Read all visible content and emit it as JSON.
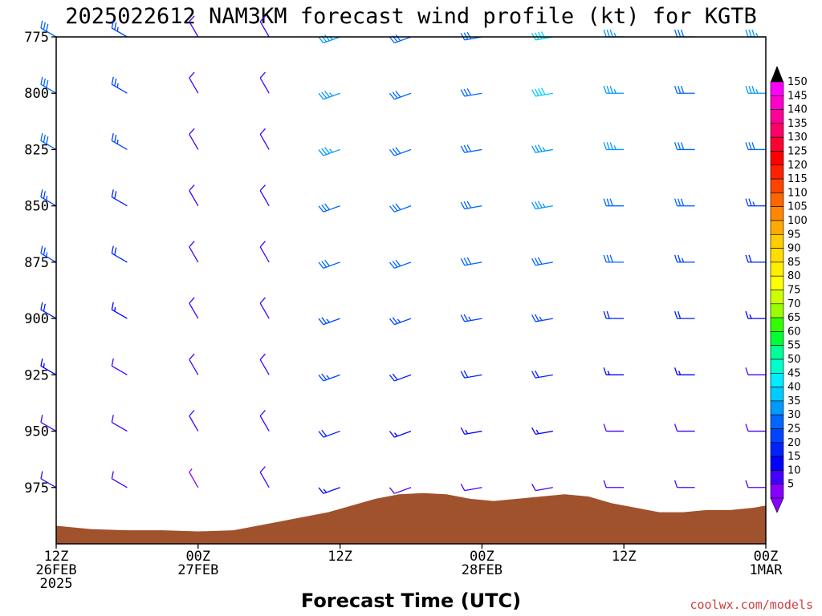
{
  "chart_data": {
    "type": "wind_profile",
    "title": "2025022612 NAM3KM forecast wind profile (kt) for KGTB",
    "xlabel": "Forecast Time (UTC)",
    "credit": "coolwx.com/models",
    "y_axis": {
      "quantity": "pressure (hPa)",
      "range": [
        775,
        1000
      ],
      "inverted": true,
      "ticks": [
        "775",
        "800",
        "825",
        "850",
        "875",
        "900",
        "925",
        "950",
        "975"
      ]
    },
    "x_axis": {
      "range_hours": [
        0,
        60
      ],
      "ticks": [
        {
          "hour": 0,
          "lines": [
            "12Z",
            "26FEB",
            "2025"
          ]
        },
        {
          "hour": 12,
          "lines": [
            "00Z",
            "27FEB"
          ]
        },
        {
          "hour": 24,
          "lines": [
            "12Z"
          ]
        },
        {
          "hour": 36,
          "lines": [
            "00Z",
            "28FEB"
          ]
        },
        {
          "hour": 48,
          "lines": [
            "12Z"
          ]
        },
        {
          "hour": 60,
          "lines": [
            "00Z",
            "1MAR"
          ]
        }
      ]
    },
    "colorbar": {
      "units": "kt",
      "labels": [
        "150",
        "145",
        "140",
        "135",
        "130",
        "125",
        "120",
        "115",
        "110",
        "105",
        "100",
        "95",
        "90",
        "85",
        "80",
        "75",
        "70",
        "65",
        "60",
        "55",
        "50",
        "45",
        "40",
        "35",
        "30",
        "25",
        "20",
        "15",
        "10",
        "5"
      ],
      "colors": [
        "#ff00ff",
        "#ff00cc",
        "#ff0099",
        "#ff0066",
        "#ff0033",
        "#ff0000",
        "#ff2200",
        "#ff4400",
        "#ff6600",
        "#ff8800",
        "#ffaa00",
        "#ffcc00",
        "#ffdd00",
        "#ffee00",
        "#ffff00",
        "#ccff00",
        "#99ff00",
        "#33ff00",
        "#00ff33",
        "#00ff99",
        "#00ffcc",
        "#00eeff",
        "#00ccff",
        "#0099ff",
        "#0066ff",
        "#0044ff",
        "#0022ff",
        "#0000ff",
        "#4400ff",
        "#8800ff"
      ]
    },
    "terrain_surface_pressure": [
      {
        "hour": 0,
        "p": 992
      },
      {
        "hour": 3,
        "p": 993.5
      },
      {
        "hour": 6,
        "p": 994
      },
      {
        "hour": 9,
        "p": 994
      },
      {
        "hour": 12,
        "p": 994.5
      },
      {
        "hour": 15,
        "p": 994
      },
      {
        "hour": 18,
        "p": 991
      },
      {
        "hour": 21,
        "p": 988
      },
      {
        "hour": 23,
        "p": 986
      },
      {
        "hour": 25,
        "p": 983
      },
      {
        "hour": 27,
        "p": 980
      },
      {
        "hour": 29,
        "p": 978
      },
      {
        "hour": 31,
        "p": 977.5
      },
      {
        "hour": 33,
        "p": 978
      },
      {
        "hour": 35,
        "p": 980
      },
      {
        "hour": 37,
        "p": 981
      },
      {
        "hour": 39,
        "p": 980
      },
      {
        "hour": 41,
        "p": 979
      },
      {
        "hour": 43,
        "p": 978
      },
      {
        "hour": 45,
        "p": 979
      },
      {
        "hour": 47,
        "p": 982
      },
      {
        "hour": 49,
        "p": 984
      },
      {
        "hour": 51,
        "p": 986
      },
      {
        "hour": 53,
        "p": 986
      },
      {
        "hour": 55,
        "p": 985
      },
      {
        "hour": 57,
        "p": 985
      },
      {
        "hour": 59,
        "p": 984
      },
      {
        "hour": 60,
        "p": 983
      }
    ],
    "barb_grid": {
      "hours": [
        0,
        6,
        12,
        18,
        24,
        30,
        36,
        42,
        48,
        54,
        60
      ],
      "levels": [
        775,
        800,
        825,
        850,
        875,
        900,
        925,
        950,
        975
      ],
      "note": "representative subset of the full barb grid",
      "speed_kt": [
        [
          30,
          25,
          10,
          10,
          35,
          30,
          30,
          40,
          35,
          30,
          35
        ],
        [
          30,
          25,
          10,
          10,
          35,
          30,
          30,
          40,
          35,
          30,
          35
        ],
        [
          30,
          25,
          10,
          10,
          35,
          30,
          30,
          35,
          35,
          30,
          30
        ],
        [
          25,
          20,
          10,
          10,
          30,
          30,
          30,
          35,
          30,
          30,
          25
        ],
        [
          25,
          20,
          10,
          10,
          30,
          30,
          30,
          30,
          30,
          25,
          20
        ],
        [
          20,
          15,
          10,
          10,
          25,
          25,
          25,
          25,
          20,
          20,
          15
        ],
        [
          15,
          10,
          10,
          10,
          25,
          20,
          20,
          20,
          15,
          15,
          10
        ],
        [
          10,
          10,
          10,
          10,
          20,
          15,
          15,
          15,
          10,
          10,
          10
        ],
        [
          10,
          10,
          5,
          10,
          15,
          10,
          10,
          10,
          10,
          10,
          10
        ]
      ],
      "direction_deg": [
        [
          300,
          300,
          330,
          330,
          250,
          250,
          260,
          260,
          270,
          270,
          270
        ],
        [
          300,
          300,
          330,
          330,
          250,
          250,
          260,
          260,
          270,
          270,
          270
        ],
        [
          300,
          300,
          330,
          330,
          250,
          250,
          260,
          260,
          270,
          270,
          270
        ],
        [
          300,
          300,
          330,
          330,
          250,
          250,
          260,
          260,
          270,
          270,
          270
        ],
        [
          300,
          300,
          330,
          330,
          250,
          250,
          260,
          260,
          270,
          270,
          270
        ],
        [
          300,
          300,
          330,
          330,
          250,
          250,
          260,
          260,
          270,
          270,
          270
        ],
        [
          300,
          300,
          330,
          330,
          250,
          250,
          260,
          260,
          270,
          270,
          270
        ],
        [
          300,
          300,
          330,
          330,
          250,
          250,
          260,
          260,
          270,
          270,
          270
        ],
        [
          300,
          300,
          330,
          330,
          250,
          250,
          260,
          260,
          270,
          270,
          270
        ]
      ]
    }
  }
}
